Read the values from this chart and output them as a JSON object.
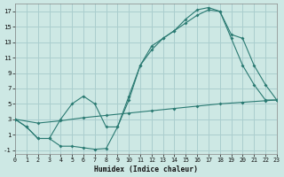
{
  "xlabel": "Humidex (Indice chaleur)",
  "bg_color": "#cde8e4",
  "grid_color": "#aacece",
  "line_color": "#2a7a72",
  "xlim": [
    0,
    23
  ],
  "ylim": [
    -1.5,
    18
  ],
  "xtick_vals": [
    0,
    1,
    2,
    3,
    4,
    5,
    6,
    7,
    8,
    9,
    10,
    11,
    12,
    13,
    14,
    15,
    16,
    17,
    18,
    19,
    20,
    21,
    22,
    23
  ],
  "ytick_vals": [
    -1,
    1,
    3,
    5,
    7,
    9,
    11,
    13,
    15,
    17
  ],
  "line1_x": [
    0,
    1,
    2,
    3,
    4,
    5,
    6,
    7,
    8,
    9,
    10,
    11,
    12,
    13,
    14,
    15,
    16,
    17,
    18,
    19,
    20,
    21,
    22,
    23
  ],
  "line1_y": [
    3,
    2,
    0.5,
    0.5,
    -0.5,
    -0.5,
    -0.7,
    -0.9,
    -0.8,
    2,
    6,
    10,
    12,
    13.5,
    14.5,
    16,
    17.2,
    17.5,
    17,
    13.5,
    10,
    7.5,
    5.5,
    5.5
  ],
  "line2_x": [
    0,
    2,
    4,
    6,
    8,
    10,
    12,
    14,
    16,
    18,
    20,
    22,
    23
  ],
  "line2_y": [
    3,
    2.5,
    2.8,
    3.2,
    3.5,
    3.8,
    4.1,
    4.4,
    4.7,
    5.0,
    5.2,
    5.4,
    5.5
  ],
  "line3_x": [
    0,
    1,
    2,
    3,
    4,
    5,
    6,
    7,
    8,
    9,
    10,
    11,
    12,
    13,
    14,
    15,
    16,
    17,
    18,
    19,
    20,
    21,
    22,
    23
  ],
  "line3_y": [
    3,
    2,
    0.5,
    0.5,
    3,
    5,
    6,
    5,
    2,
    2,
    5.5,
    10,
    12.5,
    13.5,
    14.5,
    15.5,
    16.5,
    17.2,
    17,
    14,
    13.5,
    10,
    7.5,
    5.5
  ]
}
